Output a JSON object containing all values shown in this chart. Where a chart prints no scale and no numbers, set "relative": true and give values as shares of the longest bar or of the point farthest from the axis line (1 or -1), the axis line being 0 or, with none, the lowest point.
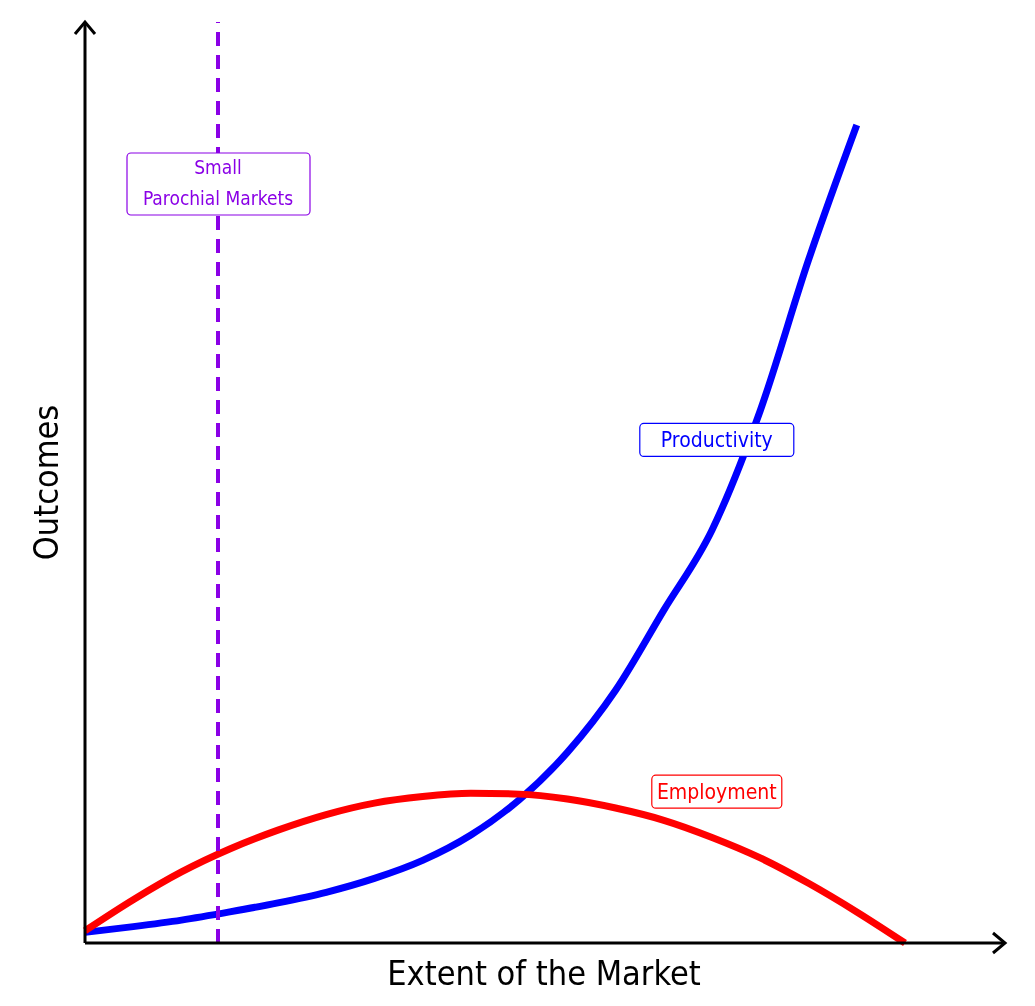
{
  "chart_data": {
    "type": "line",
    "relative": true,
    "xlabel": "Extent of the Market",
    "ylabel": "Outcomes",
    "categories": [
      null,
      null,
      null,
      null,
      null,
      null,
      null,
      null,
      null,
      null,
      null,
      null,
      null,
      null,
      null,
      null,
      null,
      null
    ],
    "series": [
      {
        "name": "Productivity",
        "color": "#0000ff",
        "values": [
          0.013,
          0.02,
          0.028,
          0.038,
          0.049,
          0.062,
          0.079,
          0.101,
          0.132,
          0.175,
          0.233,
          0.309,
          0.407,
          0.505,
          0.651,
          0.835,
          1,
          null
        ]
      },
      {
        "name": "Employment",
        "color": "#ff0000",
        "values": [
          0.015,
          0.053,
          0.087,
          0.115,
          0.138,
          0.157,
          0.171,
          0.179,
          0.183,
          0.182,
          0.176,
          0.165,
          0.15,
          0.129,
          0.104,
          0.073,
          0.038,
          0
        ]
      }
    ],
    "annotations": [
      "Small\nParochial Markets"
    ],
    "legend": false,
    "marker": "none",
    "line_style": "solid"
  }
}
